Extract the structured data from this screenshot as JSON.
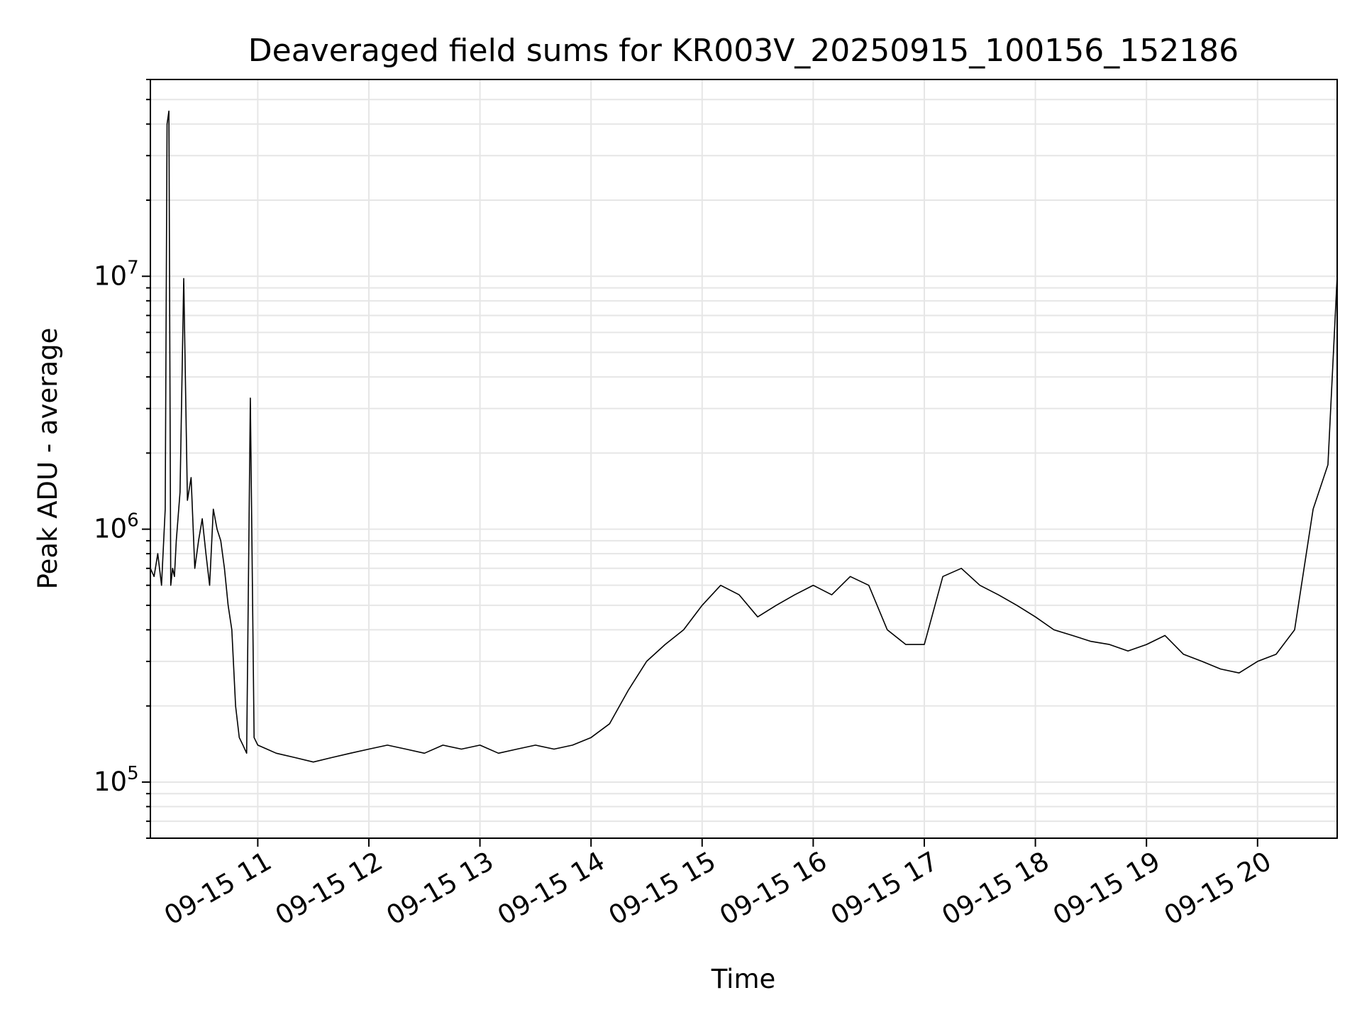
{
  "chart_data": {
    "type": "line",
    "title": "Deaveraged field sums for KR003V_20250915_100156_152186",
    "xlabel": "Time",
    "ylabel": "Peak ADU - average",
    "yscale": "log",
    "ylim": [
      60000,
      60000000
    ],
    "xlim": [
      "2025-09-15 10:02",
      "2025-09-15 20:43"
    ],
    "grid": true,
    "x_ticks": [
      "2025-09-15 11:00",
      "2025-09-15 12:00",
      "2025-09-15 13:00",
      "2025-09-15 14:00",
      "2025-09-15 15:00",
      "2025-09-15 16:00",
      "2025-09-15 17:00",
      "2025-09-15 18:00",
      "2025-09-15 19:00",
      "2025-09-15 20:00"
    ],
    "x_tick_labels": [
      "09-15 11",
      "09-15 12",
      "09-15 13",
      "09-15 14",
      "09-15 15",
      "09-15 16",
      "09-15 17",
      "09-15 18",
      "09-15 19",
      "09-15 20"
    ],
    "y_ticks": [
      100000,
      1000000,
      10000000
    ],
    "y_tick_labels": [
      {
        "base": "10",
        "exp": "5"
      },
      {
        "base": "10",
        "exp": "6"
      },
      {
        "base": "10",
        "exp": "7"
      }
    ],
    "line_color": "#000000",
    "series": [
      {
        "x": [
          "2025-09-15 10:02",
          "2025-09-15 10:04",
          "2025-09-15 10:06",
          "2025-09-15 10:08",
          "2025-09-15 10:10",
          "2025-09-15 10:11",
          "2025-09-15 10:12",
          "2025-09-15 10:13",
          "2025-09-15 10:14",
          "2025-09-15 10:15",
          "2025-09-15 10:16",
          "2025-09-15 10:18",
          "2025-09-15 10:20",
          "2025-09-15 10:22",
          "2025-09-15 10:24",
          "2025-09-15 10:26",
          "2025-09-15 10:28",
          "2025-09-15 10:30",
          "2025-09-15 10:32",
          "2025-09-15 10:34",
          "2025-09-15 10:36",
          "2025-09-15 10:38",
          "2025-09-15 10:40",
          "2025-09-15 10:42",
          "2025-09-15 10:44",
          "2025-09-15 10:46",
          "2025-09-15 10:48",
          "2025-09-15 10:50",
          "2025-09-15 10:52",
          "2025-09-15 10:54",
          "2025-09-15 10:56",
          "2025-09-15 10:58",
          "2025-09-15 11:00",
          "2025-09-15 11:10",
          "2025-09-15 11:20",
          "2025-09-15 11:30",
          "2025-09-15 11:40",
          "2025-09-15 11:50",
          "2025-09-15 12:00",
          "2025-09-15 12:10",
          "2025-09-15 12:20",
          "2025-09-15 12:30",
          "2025-09-15 12:40",
          "2025-09-15 12:50",
          "2025-09-15 13:00",
          "2025-09-15 13:10",
          "2025-09-15 13:20",
          "2025-09-15 13:30",
          "2025-09-15 13:40",
          "2025-09-15 13:50",
          "2025-09-15 14:00",
          "2025-09-15 14:10",
          "2025-09-15 14:20",
          "2025-09-15 14:30",
          "2025-09-15 14:40",
          "2025-09-15 14:50",
          "2025-09-15 15:00",
          "2025-09-15 15:10",
          "2025-09-15 15:20",
          "2025-09-15 15:30",
          "2025-09-15 15:40",
          "2025-09-15 15:50",
          "2025-09-15 16:00",
          "2025-09-15 16:10",
          "2025-09-15 16:20",
          "2025-09-15 16:30",
          "2025-09-15 16:40",
          "2025-09-15 16:50",
          "2025-09-15 17:00",
          "2025-09-15 17:10",
          "2025-09-15 17:20",
          "2025-09-15 17:30",
          "2025-09-15 17:40",
          "2025-09-15 17:50",
          "2025-09-15 18:00",
          "2025-09-15 18:10",
          "2025-09-15 18:20",
          "2025-09-15 18:30",
          "2025-09-15 18:40",
          "2025-09-15 18:50",
          "2025-09-15 19:00",
          "2025-09-15 19:10",
          "2025-09-15 19:20",
          "2025-09-15 19:30",
          "2025-09-15 19:40",
          "2025-09-15 19:50",
          "2025-09-15 20:00",
          "2025-09-15 20:10",
          "2025-09-15 20:20",
          "2025-09-15 20:30",
          "2025-09-15 20:38",
          "2025-09-15 20:43"
        ],
        "y": [
          700000,
          650000,
          800000,
          600000,
          1200000,
          40000000,
          45000000,
          600000,
          700000,
          650000,
          900000,
          1400000,
          9800000,
          1300000,
          1600000,
          700000,
          900000,
          1100000,
          800000,
          600000,
          1200000,
          1000000,
          900000,
          700000,
          500000,
          400000,
          200000,
          150000,
          140000,
          130000,
          3300000,
          150000,
          140000,
          130000,
          125000,
          120000,
          125000,
          130000,
          135000,
          140000,
          135000,
          130000,
          140000,
          135000,
          140000,
          130000,
          135000,
          140000,
          135000,
          140000,
          150000,
          170000,
          230000,
          300000,
          350000,
          400000,
          500000,
          600000,
          550000,
          450000,
          500000,
          550000,
          600000,
          550000,
          650000,
          600000,
          400000,
          350000,
          350000,
          650000,
          700000,
          600000,
          550000,
          500000,
          450000,
          400000,
          380000,
          360000,
          350000,
          330000,
          350000,
          380000,
          320000,
          300000,
          280000,
          270000,
          300000,
          320000,
          400000,
          1200000,
          1800000,
          10000000
        ]
      }
    ]
  }
}
